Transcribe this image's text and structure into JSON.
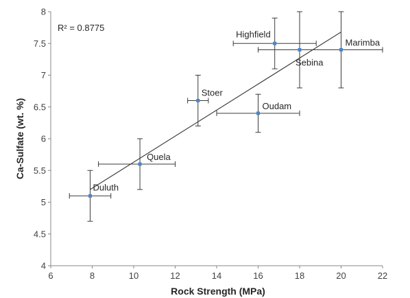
{
  "chart_data": {
    "type": "scatter",
    "title": "",
    "xlabel": "Rock Strength (MPa)",
    "ylabel": "Ca-Sulfate (wt. %)",
    "xlim": [
      6,
      22
    ],
    "ylim": [
      4,
      8
    ],
    "xticks": [
      "6",
      "8",
      "10",
      "12",
      "14",
      "16",
      "18",
      "20",
      "22"
    ],
    "yticks": [
      "4",
      "4.5",
      "5",
      "5.5",
      "6",
      "6.5",
      "7",
      "7.5",
      "8"
    ],
    "grid": false,
    "legend": "none",
    "annotation": "R² = 0.8775",
    "trendline": {
      "type": "linear",
      "x": [
        7.9,
        20
      ],
      "y": [
        5.2,
        7.68
      ]
    },
    "points": [
      {
        "name": "Duluth",
        "x": 7.9,
        "y": 5.1,
        "xerr": [
          6.9,
          8.9
        ],
        "yerr": [
          4.7,
          5.5
        ]
      },
      {
        "name": "Quela",
        "x": 10.3,
        "y": 5.6,
        "xerr": [
          8.3,
          12.0
        ],
        "yerr": [
          5.2,
          6.0
        ]
      },
      {
        "name": "Stoer",
        "x": 13.1,
        "y": 6.6,
        "xerr": [
          12.6,
          13.6
        ],
        "yerr": [
          6.2,
          7.0
        ]
      },
      {
        "name": "Oudam",
        "x": 16.0,
        "y": 6.4,
        "xerr": [
          14.0,
          18.0
        ],
        "yerr": [
          6.1,
          6.7
        ]
      },
      {
        "name": "Highfield",
        "x": 16.8,
        "y": 7.5,
        "xerr": [
          14.8,
          18.8
        ],
        "yerr": [
          7.1,
          7.9
        ]
      },
      {
        "name": "Sebina",
        "x": 18.0,
        "y": 7.4,
        "xerr": [
          16.0,
          20.0
        ],
        "yerr": [
          6.8,
          8.0
        ]
      },
      {
        "name": "Marimba",
        "x": 20.0,
        "y": 7.4,
        "xerr": [
          18.0,
          22.0
        ],
        "yerr": [
          6.8,
          8.0
        ]
      }
    ],
    "colors": {
      "point": "#4a86c8",
      "errbar": "#3a3a3a",
      "trend": "#404040",
      "axis": "#878787"
    }
  }
}
